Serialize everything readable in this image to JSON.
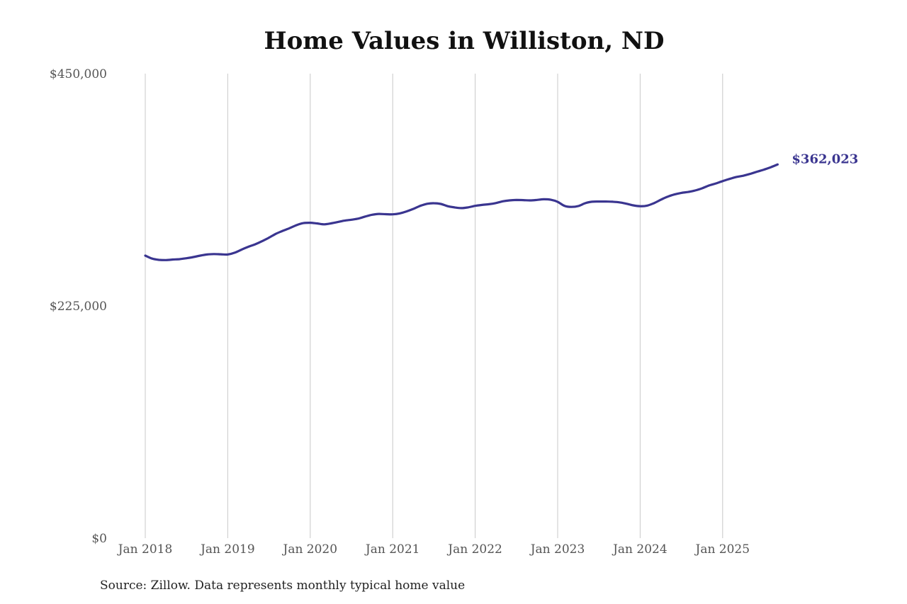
{
  "title": "Home Values in Williston, ND",
  "source": "Source: Zillow. Data represents monthly typical home value",
  "colors": {
    "line": "#3a3590",
    "grid": "#c8c8c8",
    "text": "#555555"
  },
  "end_label": "$362,023",
  "chart_data": {
    "type": "line",
    "title": "Home Values in Williston, ND",
    "xlabel": "",
    "ylabel": "",
    "ylim": [
      0,
      450000
    ],
    "yticks": [
      0,
      225000,
      450000
    ],
    "ytick_labels": [
      "$0",
      "$225,000",
      "$450,000"
    ],
    "xtick_labels": [
      "Jan 2018",
      "Jan 2019",
      "Jan 2020",
      "Jan 2021",
      "Jan 2022",
      "Jan 2023",
      "Jan 2024",
      "Jan 2025"
    ],
    "grid": "vertical",
    "annotations": [
      {
        "text": "$362,023",
        "x": "2025-09",
        "y": 362023
      }
    ],
    "series": [
      {
        "name": "Typical home value",
        "points": [
          [
            "2018-01",
            273700
          ],
          [
            "2018-02",
            270800
          ],
          [
            "2018-03",
            269600
          ],
          [
            "2018-04",
            269400
          ],
          [
            "2018-05",
            269900
          ],
          [
            "2018-06",
            270300
          ],
          [
            "2018-07",
            271200
          ],
          [
            "2018-08",
            272300
          ],
          [
            "2018-09",
            273700
          ],
          [
            "2018-10",
            274800
          ],
          [
            "2018-11",
            275200
          ],
          [
            "2018-12",
            275000
          ],
          [
            "2019-01",
            274800
          ],
          [
            "2019-02",
            276500
          ],
          [
            "2019-03",
            279500
          ],
          [
            "2019-04",
            282300
          ],
          [
            "2019-05",
            284700
          ],
          [
            "2019-06",
            287700
          ],
          [
            "2019-07",
            291100
          ],
          [
            "2019-08",
            294800
          ],
          [
            "2019-09",
            297700
          ],
          [
            "2019-10",
            300300
          ],
          [
            "2019-11",
            303200
          ],
          [
            "2019-12",
            305200
          ],
          [
            "2020-01",
            305500
          ],
          [
            "2020-02",
            304900
          ],
          [
            "2020-03",
            304000
          ],
          [
            "2020-04",
            304900
          ],
          [
            "2020-05",
            306200
          ],
          [
            "2020-06",
            307600
          ],
          [
            "2020-07",
            308500
          ],
          [
            "2020-08",
            309600
          ],
          [
            "2020-09",
            311600
          ],
          [
            "2020-10",
            313300
          ],
          [
            "2020-11",
            314100
          ],
          [
            "2020-12",
            313800
          ],
          [
            "2021-01",
            313700
          ],
          [
            "2021-02",
            314600
          ],
          [
            "2021-03",
            316500
          ],
          [
            "2021-04",
            319000
          ],
          [
            "2021-05",
            321900
          ],
          [
            "2021-06",
            323900
          ],
          [
            "2021-07",
            324500
          ],
          [
            "2021-08",
            323800
          ],
          [
            "2021-09",
            321600
          ],
          [
            "2021-10",
            320400
          ],
          [
            "2021-11",
            319700
          ],
          [
            "2021-12",
            320500
          ],
          [
            "2022-01",
            321900
          ],
          [
            "2022-02",
            322800
          ],
          [
            "2022-03",
            323500
          ],
          [
            "2022-04",
            324600
          ],
          [
            "2022-05",
            326300
          ],
          [
            "2022-06",
            327200
          ],
          [
            "2022-07",
            327600
          ],
          [
            "2022-08",
            327500
          ],
          [
            "2022-09",
            327200
          ],
          [
            "2022-10",
            327700
          ],
          [
            "2022-11",
            328300
          ],
          [
            "2022-12",
            327800
          ],
          [
            "2023-01",
            325800
          ],
          [
            "2023-02",
            321900
          ],
          [
            "2023-03",
            320900
          ],
          [
            "2023-04",
            321700
          ],
          [
            "2023-05",
            324500
          ],
          [
            "2023-06",
            325900
          ],
          [
            "2023-07",
            326100
          ],
          [
            "2023-08",
            326100
          ],
          [
            "2023-09",
            325900
          ],
          [
            "2023-10",
            325300
          ],
          [
            "2023-11",
            324000
          ],
          [
            "2023-12",
            322400
          ],
          [
            "2024-01",
            321600
          ],
          [
            "2024-02",
            322100
          ],
          [
            "2024-03",
            324500
          ],
          [
            "2024-04",
            327800
          ],
          [
            "2024-05",
            330800
          ],
          [
            "2024-06",
            333000
          ],
          [
            "2024-07",
            334500
          ],
          [
            "2024-08",
            335400
          ],
          [
            "2024-09",
            336800
          ],
          [
            "2024-10",
            338900
          ],
          [
            "2024-11",
            341600
          ],
          [
            "2024-12",
            343600
          ],
          [
            "2025-01",
            345900
          ],
          [
            "2025-02",
            348000
          ],
          [
            "2025-03",
            349900
          ],
          [
            "2025-04",
            351100
          ],
          [
            "2025-05",
            352900
          ],
          [
            "2025-06",
            355000
          ],
          [
            "2025-07",
            357000
          ],
          [
            "2025-08",
            359300
          ],
          [
            "2025-09",
            362023
          ]
        ]
      }
    ]
  }
}
